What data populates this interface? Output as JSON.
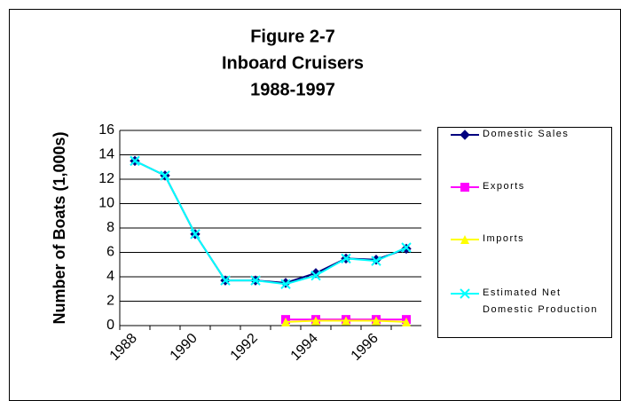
{
  "chart_data": {
    "type": "line",
    "title": [
      "Figure 2-7",
      "Inboard Cruisers",
      "1988-1997"
    ],
    "ylabel": "Number of Boats (1,000s)",
    "categories": [
      "1988",
      null,
      "1990",
      null,
      "1992",
      null,
      "1994",
      null,
      "1996",
      null
    ],
    "ylim": [
      0,
      16
    ],
    "yticks": [
      0,
      2,
      4,
      6,
      8,
      10,
      12,
      14,
      16
    ],
    "grid": true,
    "legend": "right",
    "series": [
      {
        "name": "Domestic Sales",
        "color": "#000080",
        "marker": "diamond",
        "values": [
          13.5,
          12.3,
          7.5,
          3.7,
          3.7,
          3.5,
          4.3,
          5.5,
          5.4,
          6.3
        ]
      },
      {
        "name": "Exports",
        "color": "#ff00ff",
        "marker": "square",
        "values": [
          null,
          null,
          null,
          null,
          null,
          0.5,
          0.5,
          0.5,
          0.5,
          0.5
        ]
      },
      {
        "name": "Imports",
        "color": "#ffff00",
        "marker": "triangle",
        "values": [
          null,
          null,
          null,
          null,
          null,
          0.3,
          0.4,
          0.4,
          0.4,
          0.3
        ]
      },
      {
        "name": "Estimated Net Domestic Production",
        "color": "#00ffff",
        "marker": "x",
        "values": [
          13.5,
          12.3,
          7.5,
          3.7,
          3.7,
          3.4,
          4.1,
          5.5,
          5.3,
          6.4
        ]
      }
    ]
  }
}
